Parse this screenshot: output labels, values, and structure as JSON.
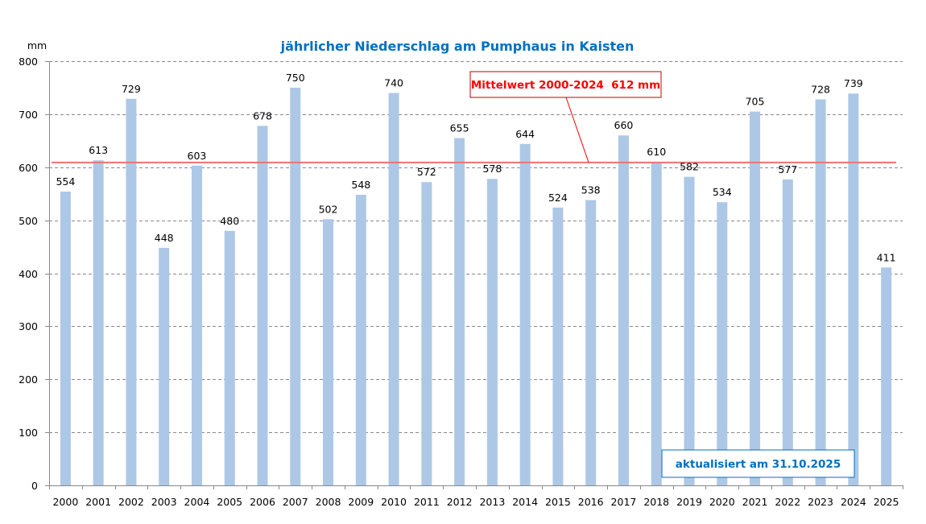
{
  "chart_data": {
    "type": "bar",
    "title": "jährlicher Niederschlag am Pumphaus in Kaisten",
    "ylabel": "mm",
    "xlabel": "",
    "ylim": [
      0,
      800
    ],
    "yticks": [
      0,
      100,
      200,
      300,
      400,
      500,
      600,
      700,
      800
    ],
    "grid": true,
    "categories": [
      "2000",
      "2001",
      "2002",
      "2003",
      "2004",
      "2005",
      "2006",
      "2007",
      "2008",
      "2009",
      "2010",
      "2011",
      "2012",
      "2013",
      "2014",
      "2015",
      "2016",
      "2017",
      "2018",
      "2019",
      "2020",
      "2021",
      "2022",
      "2023",
      "2024",
      "2025"
    ],
    "values": [
      554,
      613,
      729,
      448,
      603,
      480,
      678,
      750,
      502,
      548,
      740,
      572,
      655,
      578,
      644,
      524,
      538,
      660,
      610,
      582,
      534,
      705,
      577,
      728,
      739,
      411
    ],
    "mean_line": {
      "value": 612,
      "label": "Mittelwert 2000-2024  612 mm"
    },
    "annotation": "aktualisiert am 31.10.2025",
    "colors": {
      "bar": "#adc8e6",
      "mean_line": "#ee7272",
      "mean_label": "#ff0000",
      "title": "#0070c0",
      "annotation": "#0070c0",
      "grid": "#888888",
      "axis": "#888888"
    }
  }
}
